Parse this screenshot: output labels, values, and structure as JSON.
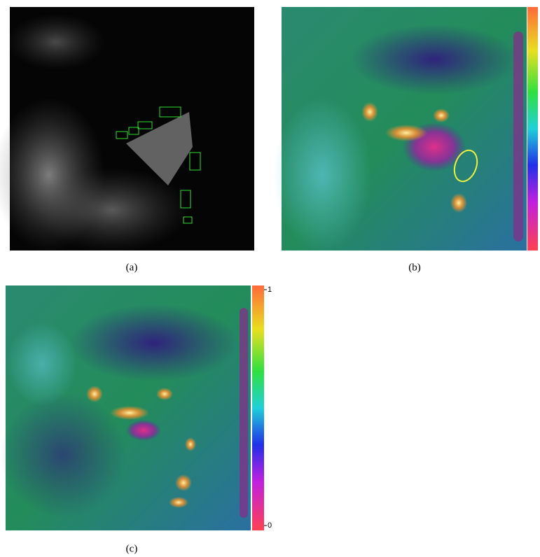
{
  "panels": [
    {
      "caption": "(a)"
    },
    {
      "caption": "(b)"
    },
    {
      "caption": "(c)"
    }
  ],
  "colorbar": {
    "ticks": [
      0,
      1
    ]
  }
}
